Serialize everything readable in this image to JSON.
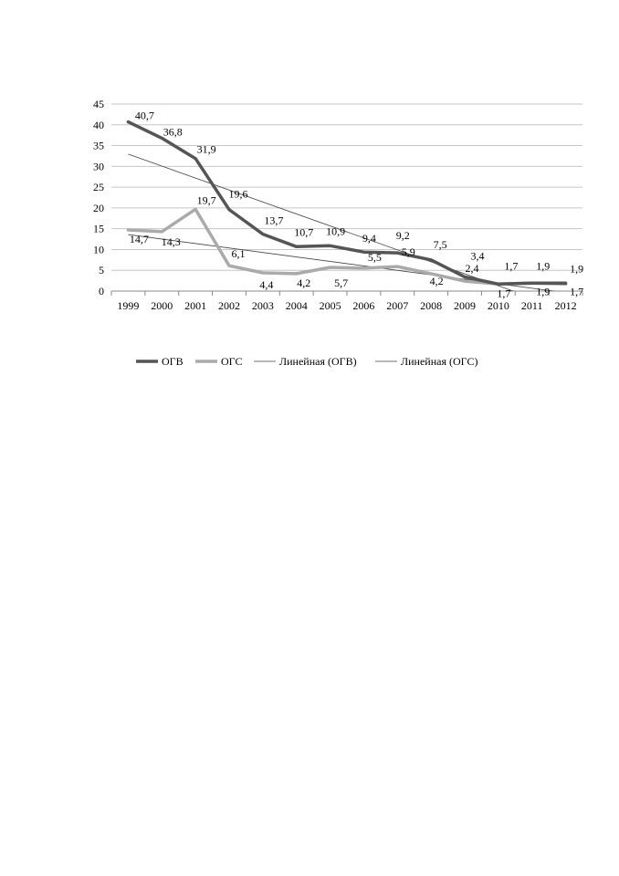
{
  "chart_data": {
    "type": "line",
    "title": "",
    "xlabel": "",
    "ylabel": "",
    "x": [
      "1999",
      "2000",
      "2001",
      "2002",
      "2003",
      "2004",
      "2005",
      "2006",
      "2007",
      "2008",
      "2009",
      "2010",
      "2011",
      "2012"
    ],
    "ylim": [
      0,
      45
    ],
    "yticks": [
      "0",
      "5",
      "10",
      "15",
      "20",
      "25",
      "30",
      "35",
      "40",
      "45"
    ],
    "grid": true,
    "legend_position": "bottom",
    "series": [
      {
        "name": "ОГВ",
        "color": "#555555",
        "values": [
          40.7,
          36.8,
          31.9,
          19.6,
          13.7,
          10.7,
          10.9,
          9.4,
          9.2,
          7.5,
          3.4,
          1.7,
          1.9,
          1.9
        ],
        "labels": [
          "40,7",
          "36,8",
          "31,9",
          "19,6",
          "13,7",
          "10,7",
          "10,9",
          "9,4",
          "9,2",
          "7,5",
          "3,4",
          "1,7",
          "1,9",
          "1,9"
        ]
      },
      {
        "name": "ОГС",
        "color": "#aaaaaa",
        "values": [
          14.7,
          14.3,
          19.7,
          6.1,
          4.4,
          4.2,
          5.7,
          5.5,
          5.9,
          4.2,
          2.4,
          1.7,
          1.9,
          1.7
        ],
        "labels": [
          "14,7",
          "14,3",
          "19,7",
          "6,1",
          "4,4",
          "4,2",
          "5,7",
          "5,5",
          "5,9",
          "4,2",
          "2,4",
          "1,7",
          "1,9",
          "1,7"
        ]
      }
    ],
    "trendlines": [
      {
        "name": "Линейная (ОГВ)",
        "of": "ОГВ",
        "color": "#444444"
      },
      {
        "name": "Линейная (ОГС)",
        "of": "ОГС",
        "color": "#444444"
      }
    ]
  }
}
